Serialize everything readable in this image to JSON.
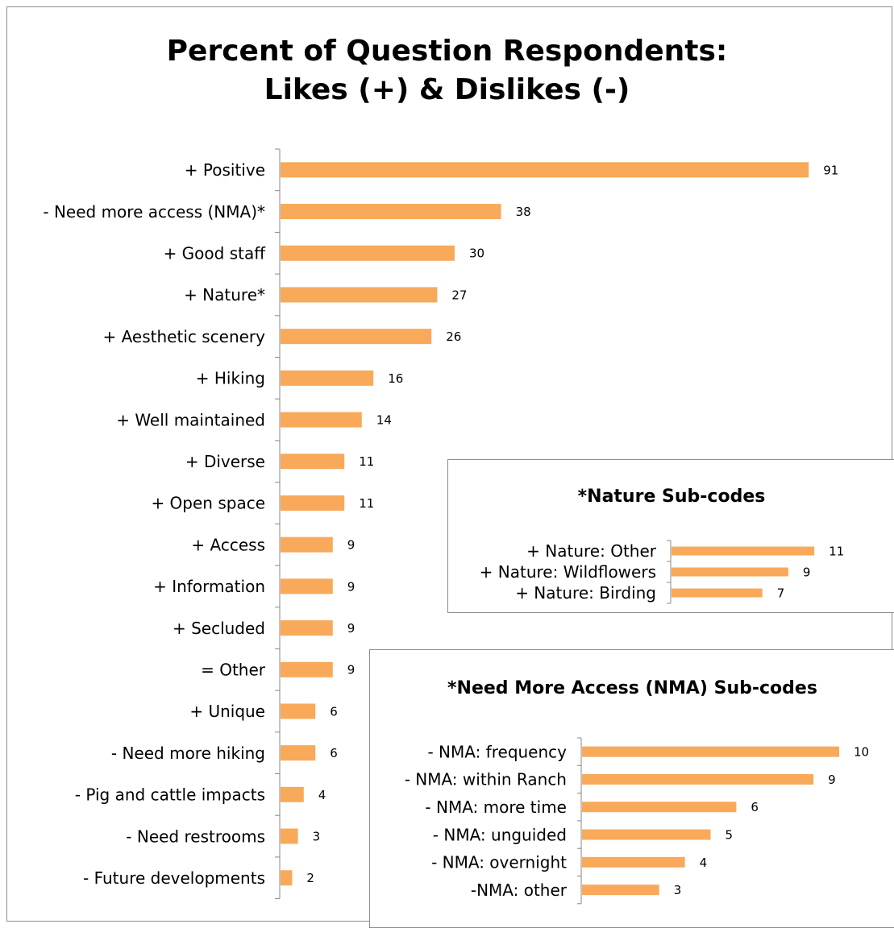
{
  "title_line1": "Percent of Question Respondents:",
  "title_line2": "Likes (+) & Dislikes (-)",
  "bar_color": "#F8A95A",
  "chart_data": [
    {
      "type": "bar",
      "orientation": "horizontal",
      "title": "Percent of Question Respondents: Likes (+) & Dislikes (-)",
      "categories": [
        "+ Positive",
        "- Need more access (NMA)*",
        "+ Good staff",
        "+ Nature*",
        "+ Aesthetic scenery",
        "+ Hiking",
        "+ Well maintained",
        "+ Diverse",
        "+ Open space",
        "+ Access",
        "+ Information",
        "+ Secluded",
        "= Other",
        "+ Unique",
        "- Need more hiking",
        "- Pig and cattle impacts",
        "- Need restrooms",
        "- Future developments"
      ],
      "values": [
        91,
        38,
        30,
        27,
        26,
        16,
        14,
        11,
        11,
        9,
        9,
        9,
        9,
        6,
        6,
        4,
        3,
        2
      ],
      "xlim": [
        0,
        100
      ],
      "grid": false,
      "legend": false
    },
    {
      "type": "bar",
      "orientation": "horizontal",
      "title": "*Nature Sub-codes",
      "categories": [
        "+ Nature: Other",
        "+ Nature: Wildflowers",
        "+ Nature: Birding"
      ],
      "values": [
        11,
        9,
        7
      ],
      "xlim": [
        0,
        12
      ],
      "grid": false,
      "legend": false
    },
    {
      "type": "bar",
      "orientation": "horizontal",
      "title": "*Need More Access (NMA) Sub-codes",
      "categories": [
        "- NMA: frequency",
        "- NMA: within Ranch",
        "- NMA: more time",
        "- NMA: unguided",
        "- NMA: overnight",
        "-NMA: other"
      ],
      "values": [
        10,
        9,
        6,
        5,
        4,
        3
      ],
      "xlim": [
        0,
        11
      ],
      "grid": false,
      "legend": false
    }
  ]
}
